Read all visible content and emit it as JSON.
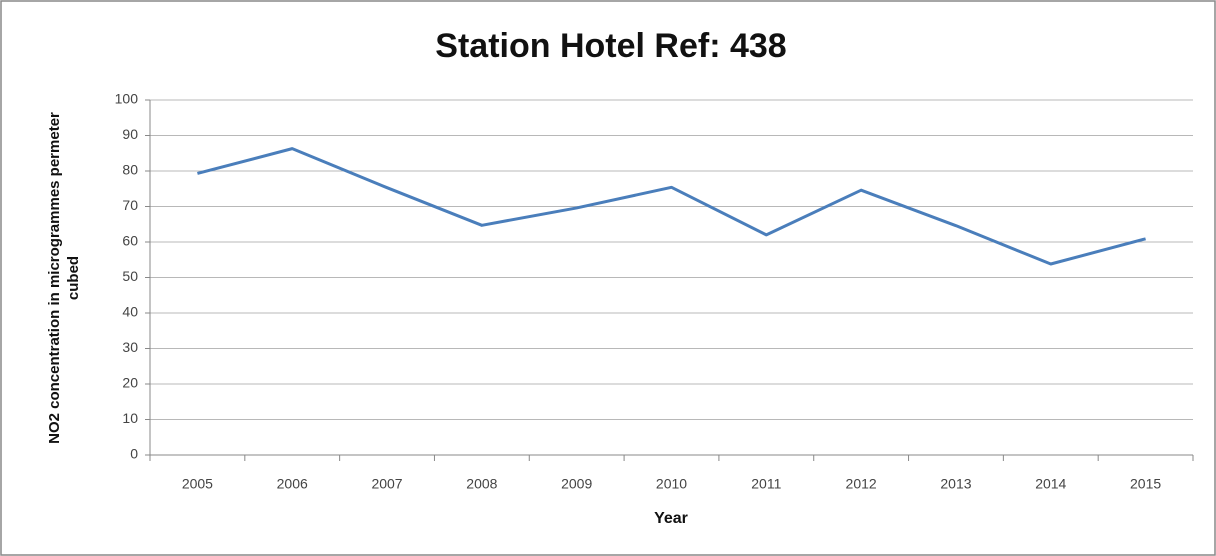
{
  "chart_data": {
    "type": "line",
    "title": "Station Hotel Ref: 438",
    "x_label": "Year",
    "y_label": "NO2 concentration in microgrammes permeter cubed",
    "categories": [
      "2005",
      "2006",
      "2007",
      "2008",
      "2009",
      "2010",
      "2011",
      "2012",
      "2013",
      "2014",
      "2015"
    ],
    "series": [
      {
        "color": "#4a7ebb",
        "values": [
          79.3,
          86.3,
          75.3,
          64.7,
          69.6,
          75.4,
          62,
          74.6,
          64.6,
          53.8,
          60.9
        ]
      }
    ],
    "ylim": [
      0,
      100
    ],
    "yticks": [
      0,
      10,
      20,
      30,
      40,
      50,
      60,
      70,
      80,
      90,
      100
    ],
    "grid": true
  }
}
